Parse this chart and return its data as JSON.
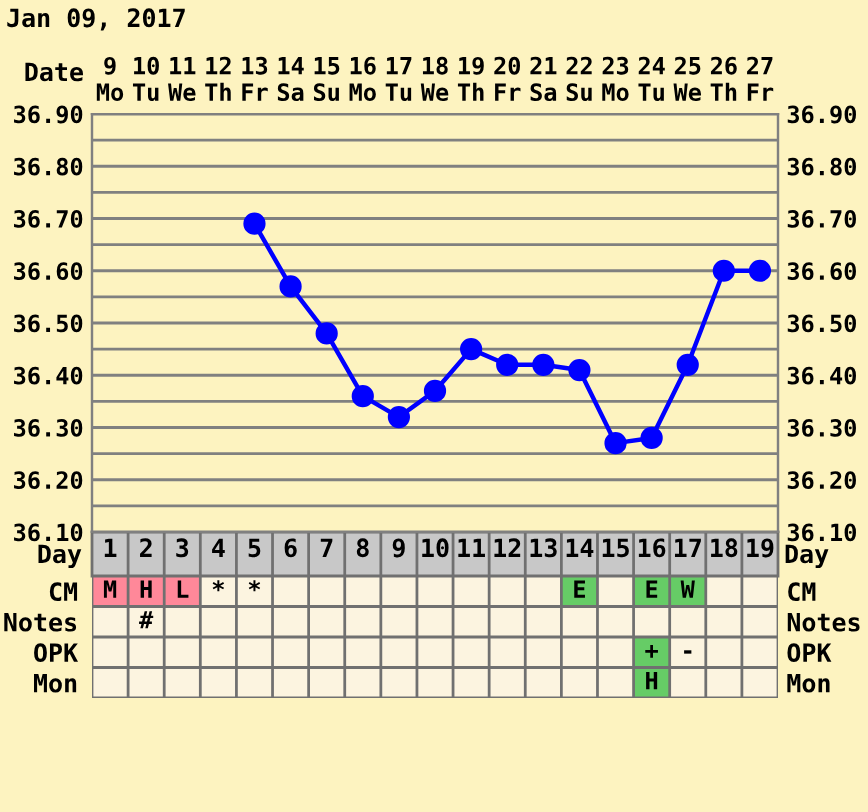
{
  "chart_data": [
    {
      "type": "line",
      "title": "Jan 09, 2017",
      "xlabel": "Date",
      "categories": [
        "9\nMo",
        "10\nTu",
        "11\nWe",
        "12\nTh",
        "13\nFr",
        "14\nSa",
        "15\nSu",
        "16\nMo",
        "17\nTu",
        "18\nWe",
        "19\nTh",
        "20\nFr",
        "21\nSa",
        "22\nSu",
        "23\nMo",
        "24\nTu",
        "25\nWe",
        "26\nTh",
        "27\nFr"
      ],
      "series": [
        {
          "color": "#0000ff",
          "values": [
            null,
            null,
            null,
            null,
            36.69,
            36.57,
            36.48,
            36.36,
            36.32,
            36.37,
            36.45,
            36.42,
            36.42,
            36.41,
            36.27,
            36.28,
            36.42,
            36.6,
            36.6
          ]
        }
      ],
      "marker": "circle",
      "line_style": "solid",
      "grid": true,
      "ylim": [
        36.1,
        36.9
      ],
      "yticks": [
        {
          "value": 36.1,
          "label": "36.10"
        },
        {
          "value": 36.15,
          "label": null
        },
        {
          "value": 36.2,
          "label": "36.20"
        },
        {
          "value": 36.25,
          "label": null
        },
        {
          "value": 36.3,
          "label": "36.30"
        },
        {
          "value": 36.35,
          "label": null
        },
        {
          "value": 36.4,
          "label": "36.40"
        },
        {
          "value": 36.45,
          "label": null
        },
        {
          "value": 36.5,
          "label": "36.50"
        },
        {
          "value": 36.55,
          "label": null
        },
        {
          "value": 36.6,
          "label": "36.60"
        },
        {
          "value": 36.65,
          "label": null
        },
        {
          "value": 36.7,
          "label": "36.70"
        },
        {
          "value": 36.75,
          "label": null
        },
        {
          "value": 36.8,
          "label": "36.80"
        },
        {
          "value": 36.85,
          "label": null
        },
        {
          "value": 36.9,
          "label": "36.90"
        }
      ],
      "y2lim": [
        36.1,
        36.9
      ],
      "y2ticks": [
        {
          "value": 36.1,
          "label": "36.10"
        },
        {
          "value": 36.2,
          "label": "36.20"
        },
        {
          "value": 36.3,
          "label": "36.30"
        },
        {
          "value": 36.4,
          "label": "36.40"
        },
        {
          "value": 36.5,
          "label": "36.50"
        },
        {
          "value": 36.6,
          "label": "36.60"
        },
        {
          "value": 36.7,
          "label": "36.70"
        },
        {
          "value": 36.8,
          "label": "36.80"
        },
        {
          "value": 36.9,
          "label": "36.90"
        }
      ]
    },
    {
      "type": "heatmap",
      "xlabel": "Day",
      "categories": [
        "1",
        "2",
        "3",
        "4",
        "5",
        "6",
        "7",
        "8",
        "9",
        "10",
        "11",
        "12",
        "13",
        "14",
        "15",
        "16",
        "17",
        "18",
        "19"
      ],
      "y_categories": [
        "CM",
        "Notes",
        "OPK",
        "Mon"
      ],
      "y2_categories": [
        "CM",
        "Notes",
        "OPK",
        "Mon"
      ],
      "cells": [
        [
          null,
          null,
          null,
          null,
          null,
          null,
          null,
          null,
          null,
          null,
          null,
          null,
          null,
          null,
          null,
          null,
          null,
          null,
          null
        ],
        [
          null,
          null,
          null,
          null,
          null,
          null,
          null,
          null,
          null,
          null,
          null,
          null,
          null,
          null,
          null,
          null,
          null,
          null,
          null
        ],
        [
          null,
          null,
          null,
          null,
          null,
          null,
          null,
          null,
          null,
          null,
          null,
          null,
          null,
          null,
          null,
          null,
          null,
          null,
          null
        ],
        [
          null,
          null,
          null,
          null,
          null,
          null,
          null,
          null,
          null,
          null,
          null,
          null,
          null,
          null,
          null,
          null,
          null,
          null,
          null
        ]
      ],
      "cell_labels": [
        [
          "M",
          "H",
          "L",
          "*",
          "*",
          null,
          null,
          null,
          null,
          null,
          null,
          null,
          null,
          "E",
          null,
          "E",
          "W",
          null,
          null
        ],
        [
          null,
          "#",
          null,
          null,
          null,
          null,
          null,
          null,
          null,
          null,
          null,
          null,
          null,
          null,
          null,
          null,
          null,
          null,
          null
        ],
        [
          null,
          null,
          null,
          null,
          null,
          null,
          null,
          null,
          null,
          null,
          null,
          null,
          null,
          null,
          null,
          "+",
          "-",
          null,
          null
        ],
        [
          null,
          null,
          null,
          null,
          null,
          null,
          null,
          null,
          null,
          null,
          null,
          null,
          null,
          null,
          null,
          "H",
          null,
          null,
          null
        ]
      ],
      "colors": [
        [
          "#ff8899",
          "#ff8899",
          "#ff8899",
          null,
          null,
          null,
          null,
          null,
          null,
          null,
          null,
          null,
          null,
          "#66cc66",
          null,
          "#66cc66",
          "#66cc66",
          null,
          null
        ],
        [
          null,
          null,
          null,
          null,
          null,
          null,
          null,
          null,
          null,
          null,
          null,
          null,
          null,
          null,
          null,
          null,
          null,
          null,
          null
        ],
        [
          null,
          null,
          null,
          null,
          null,
          null,
          null,
          null,
          null,
          null,
          null,
          null,
          null,
          null,
          null,
          "#66cc66",
          null,
          null,
          null
        ],
        [
          null,
          null,
          null,
          null,
          null,
          null,
          null,
          null,
          null,
          null,
          null,
          null,
          null,
          null,
          null,
          "#66cc66",
          null,
          null,
          null
        ]
      ]
    }
  ]
}
